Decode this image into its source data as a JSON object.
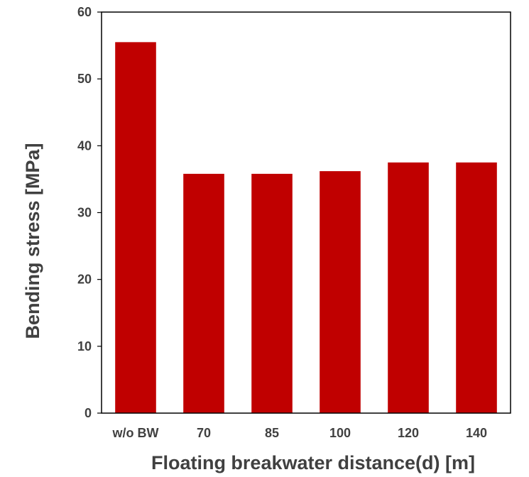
{
  "chart_data": {
    "type": "bar",
    "title": "",
    "xlabel": "Floating breakwater distance(d) [m]",
    "ylabel": "Bending stress [MPa]",
    "categories": [
      "w/o BW",
      "70",
      "85",
      "100",
      "120",
      "140"
    ],
    "values": [
      55.5,
      35.8,
      35.8,
      36.2,
      37.5,
      37.5
    ],
    "ylim": [
      0,
      60
    ],
    "yticks": [
      "0",
      "10",
      "20",
      "30",
      "40",
      "50",
      "60"
    ],
    "grid": false,
    "legend": "none",
    "colors": {
      "bar": "#C00000",
      "axis": "#000000",
      "text": "#404040"
    }
  }
}
